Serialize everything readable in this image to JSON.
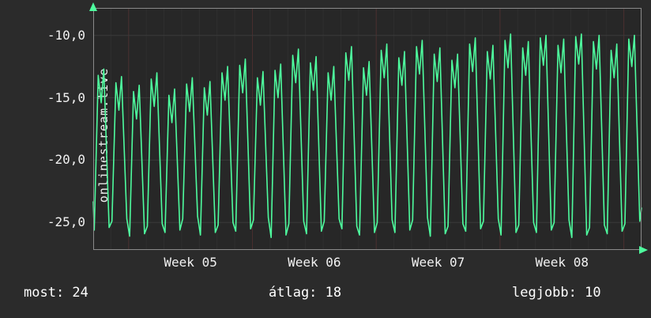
{
  "side_label": "onlinestream.live",
  "stats": [
    {
      "name": "most",
      "text": "most: 24",
      "value": 24
    },
    {
      "name": "atlag",
      "text": "átlag: 18",
      "value": 18
    },
    {
      "name": "legjobb",
      "text": "legjobb: 10",
      "value": 10
    }
  ],
  "chart_data": {
    "type": "line",
    "title": "onlinestream.live",
    "xlabel": "",
    "ylabel": "",
    "xlim": [
      0,
      31
    ],
    "ylim": [
      -27.2,
      -7.8
    ],
    "grid": "on",
    "line_color": "#4efc9e",
    "frame_color": "#8a8a8a",
    "grid_color": "#3a3a3a",
    "day_grid_color": "#2f2f2f",
    "week_grid_color": "#4a2f2f",
    "background": "#2b2b2b",
    "y_ticks": [
      {
        "y": -10,
        "label": "-10,0"
      },
      {
        "y": -15,
        "label": "-15,0"
      },
      {
        "y": -20,
        "label": "-20,0"
      },
      {
        "y": -25,
        "label": "-25,0"
      }
    ],
    "x_ticks": [
      {
        "x": 5.5,
        "label": "Week 05"
      },
      {
        "x": 12.5,
        "label": "Week 06"
      },
      {
        "x": 19.5,
        "label": "Week 07"
      },
      {
        "x": 26.5,
        "label": "Week 08"
      }
    ],
    "week_boundaries": [
      2,
      9,
      16,
      23,
      30
    ],
    "summary": {
      "most": 24,
      "atlag": 18,
      "legjobb": 10
    },
    "points": [
      [
        0,
        -23.3
      ],
      [
        0.06,
        -25.6
      ],
      [
        0.28,
        -13.2
      ],
      [
        0.45,
        -15.4
      ],
      [
        0.6,
        -12.7
      ],
      [
        0.9,
        -25.4
      ],
      [
        1.06,
        -24.9
      ],
      [
        1.28,
        -13.8
      ],
      [
        1.45,
        -16.0
      ],
      [
        1.6,
        -13.3
      ],
      [
        1.9,
        -24.7
      ],
      [
        2.06,
        -26.1
      ],
      [
        2.28,
        -14.5
      ],
      [
        2.45,
        -16.7
      ],
      [
        2.6,
        -14.0
      ],
      [
        2.9,
        -25.9
      ],
      [
        3.06,
        -25.3
      ],
      [
        3.28,
        -13.5
      ],
      [
        3.45,
        -15.7
      ],
      [
        3.6,
        -13.0
      ],
      [
        3.9,
        -25.1
      ],
      [
        4.06,
        -25.8
      ],
      [
        4.28,
        -14.8
      ],
      [
        4.45,
        -17.0
      ],
      [
        4.6,
        -14.3
      ],
      [
        4.9,
        -25.6
      ],
      [
        5.06,
        -24.7
      ],
      [
        5.28,
        -13.9
      ],
      [
        5.45,
        -16.1
      ],
      [
        5.6,
        -13.4
      ],
      [
        5.9,
        -24.5
      ],
      [
        6.06,
        -26.0
      ],
      [
        6.28,
        -14.2
      ],
      [
        6.45,
        -16.4
      ],
      [
        6.6,
        -13.7
      ],
      [
        6.9,
        -25.8
      ],
      [
        7.06,
        -25.2
      ],
      [
        7.28,
        -13.0
      ],
      [
        7.45,
        -15.2
      ],
      [
        7.6,
        -12.5
      ],
      [
        7.9,
        -25.0
      ],
      [
        8.06,
        -25.7
      ],
      [
        8.28,
        -12.4
      ],
      [
        8.45,
        -14.6
      ],
      [
        8.6,
        -11.9
      ],
      [
        8.9,
        -25.5
      ],
      [
        9.06,
        -24.8
      ],
      [
        9.28,
        -13.4
      ],
      [
        9.45,
        -15.6
      ],
      [
        9.6,
        -12.9
      ],
      [
        9.9,
        -24.6
      ],
      [
        10.06,
        -26.2
      ],
      [
        10.28,
        -12.8
      ],
      [
        10.45,
        -15.0
      ],
      [
        10.6,
        -12.3
      ],
      [
        10.9,
        -26.0
      ],
      [
        11.06,
        -25.1
      ],
      [
        11.28,
        -11.6
      ],
      [
        11.45,
        -13.8
      ],
      [
        11.6,
        -11.1
      ],
      [
        11.9,
        -24.9
      ],
      [
        12.06,
        -25.9
      ],
      [
        12.28,
        -12.2
      ],
      [
        12.45,
        -14.4
      ],
      [
        12.6,
        -11.7
      ],
      [
        12.9,
        -25.7
      ],
      [
        13.06,
        -24.9
      ],
      [
        13.28,
        -13.0
      ],
      [
        13.45,
        -15.2
      ],
      [
        13.6,
        -12.5
      ],
      [
        13.9,
        -24.7
      ],
      [
        14.06,
        -25.5
      ],
      [
        14.28,
        -11.4
      ],
      [
        14.45,
        -13.6
      ],
      [
        14.6,
        -10.9
      ],
      [
        14.9,
        -25.3
      ],
      [
        15.06,
        -26.0
      ],
      [
        15.28,
        -12.6
      ],
      [
        15.45,
        -14.8
      ],
      [
        15.6,
        -12.1
      ],
      [
        15.9,
        -25.8
      ],
      [
        16.06,
        -25.0
      ],
      [
        16.28,
        -11.2
      ],
      [
        16.45,
        -13.4
      ],
      [
        16.6,
        -10.7
      ],
      [
        16.9,
        -24.8
      ],
      [
        17.06,
        -25.8
      ],
      [
        17.28,
        -11.8
      ],
      [
        17.45,
        -14.0
      ],
      [
        17.6,
        -11.3
      ],
      [
        17.9,
        -25.6
      ],
      [
        18.06,
        -24.8
      ],
      [
        18.28,
        -10.9
      ],
      [
        18.45,
        -13.1
      ],
      [
        18.6,
        -10.4
      ],
      [
        18.9,
        -24.6
      ],
      [
        19.06,
        -26.1
      ],
      [
        19.28,
        -11.5
      ],
      [
        19.45,
        -13.7
      ],
      [
        19.6,
        -11.0
      ],
      [
        19.9,
        -25.9
      ],
      [
        20.06,
        -25.3
      ],
      [
        20.28,
        -12.0
      ],
      [
        20.45,
        -14.2
      ],
      [
        20.6,
        -11.5
      ],
      [
        20.9,
        -25.1
      ],
      [
        21.06,
        -25.7
      ],
      [
        21.28,
        -10.7
      ],
      [
        21.45,
        -12.9
      ],
      [
        21.6,
        -10.2
      ],
      [
        21.9,
        -25.5
      ],
      [
        22.06,
        -24.9
      ],
      [
        22.28,
        -11.3
      ],
      [
        22.45,
        -13.5
      ],
      [
        22.6,
        -10.8
      ],
      [
        22.9,
        -24.7
      ],
      [
        23.06,
        -26.0
      ],
      [
        23.28,
        -10.4
      ],
      [
        23.45,
        -12.6
      ],
      [
        23.6,
        -9.9
      ],
      [
        23.9,
        -25.8
      ],
      [
        24.06,
        -25.2
      ],
      [
        24.28,
        -11.0
      ],
      [
        24.45,
        -13.2
      ],
      [
        24.6,
        -10.5
      ],
      [
        24.9,
        -25.0
      ],
      [
        25.06,
        -25.8
      ],
      [
        25.28,
        -10.2
      ],
      [
        25.45,
        -12.4
      ],
      [
        25.6,
        -10.0
      ],
      [
        25.9,
        -25.6
      ],
      [
        26.06,
        -25.0
      ],
      [
        26.28,
        -10.8
      ],
      [
        26.45,
        -13.0
      ],
      [
        26.6,
        -10.3
      ],
      [
        26.9,
        -24.8
      ],
      [
        27.06,
        -26.2
      ],
      [
        27.28,
        -10.1
      ],
      [
        27.45,
        -12.3
      ],
      [
        27.6,
        -9.9
      ],
      [
        27.9,
        -26.0
      ],
      [
        28.06,
        -25.4
      ],
      [
        28.28,
        -10.5
      ],
      [
        28.45,
        -12.7
      ],
      [
        28.6,
        -10.0
      ],
      [
        28.9,
        -25.2
      ],
      [
        29.06,
        -25.9
      ],
      [
        29.28,
        -11.2
      ],
      [
        29.45,
        -13.4
      ],
      [
        29.6,
        -10.7
      ],
      [
        29.9,
        -25.7
      ],
      [
        30.06,
        -25.1
      ],
      [
        30.28,
        -10.3
      ],
      [
        30.45,
        -12.5
      ],
      [
        30.6,
        -10.0
      ],
      [
        30.9,
        -24.9
      ],
      [
        31,
        -23.8
      ]
    ]
  }
}
